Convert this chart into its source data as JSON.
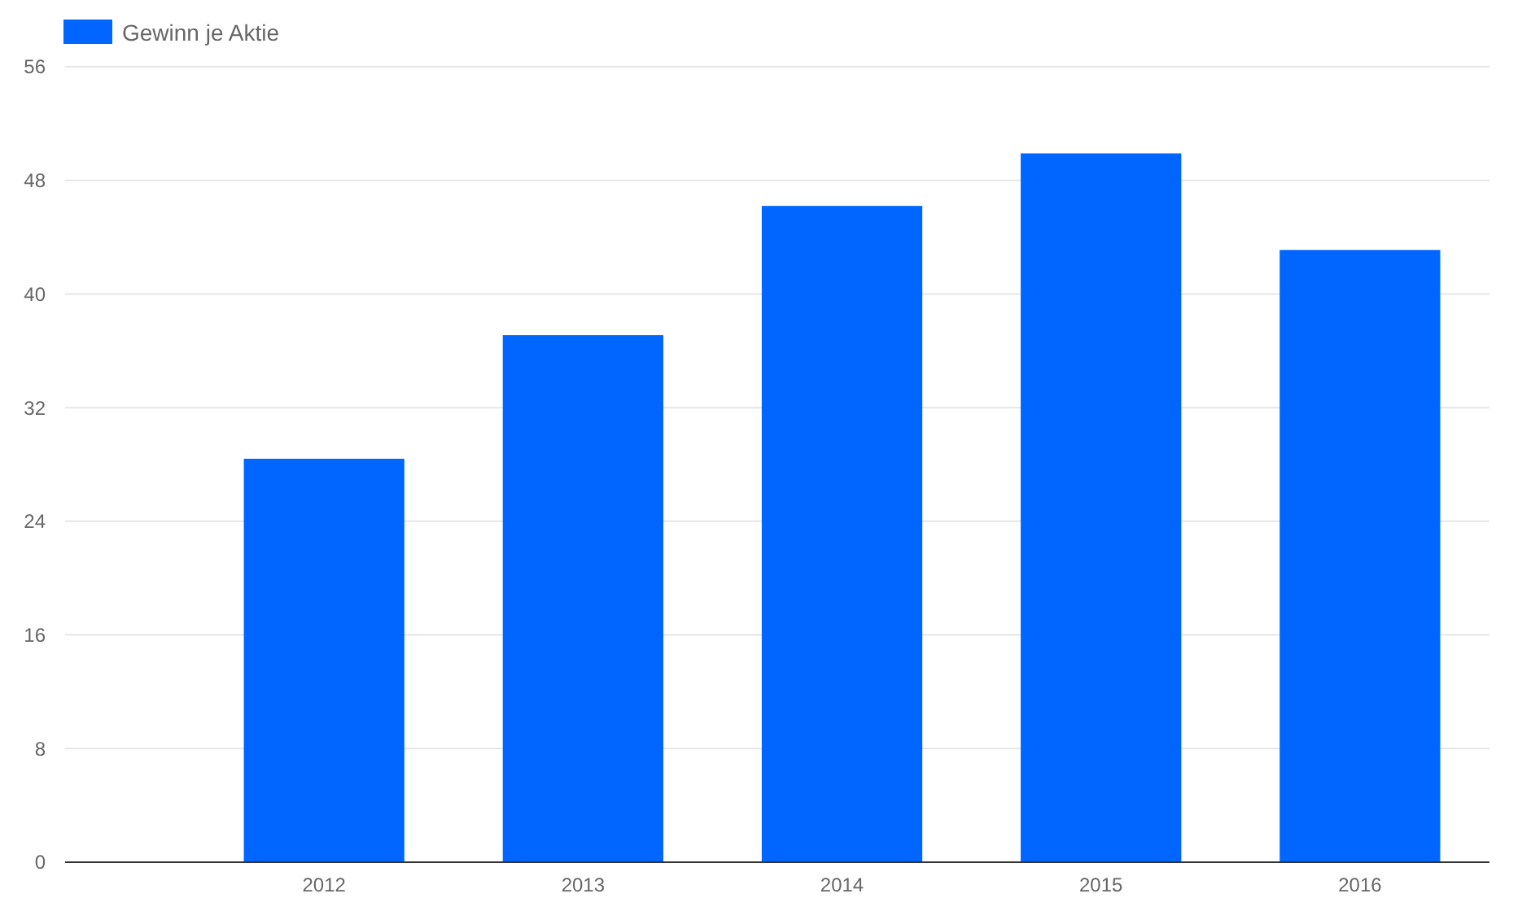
{
  "chart_data": {
    "type": "bar",
    "categories": [
      "2012",
      "2013",
      "2014",
      "2015",
      "2016"
    ],
    "series": [
      {
        "name": "Gewinn je Aktie",
        "color": "#0066ff",
        "values": [
          28.4,
          37.1,
          46.2,
          49.9,
          43.1
        ]
      }
    ],
    "ylim": [
      0,
      56
    ],
    "yticks": [
      0,
      8,
      16,
      24,
      32,
      40,
      48,
      56
    ],
    "grid": "y",
    "legend": "top left"
  }
}
